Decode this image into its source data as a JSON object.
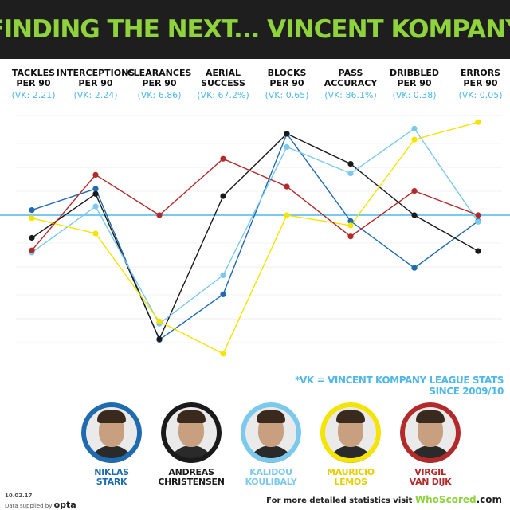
{
  "header": {
    "title": "FINDING THE NEXT... VINCENT KOMPANY"
  },
  "chart_data": {
    "type": "line",
    "categories": [
      {
        "line1": "TACKLES",
        "line2": "PER 90",
        "ref": "(VK: 2.21)"
      },
      {
        "line1": "INTERCEPTIONS",
        "line2": "PER 90",
        "ref": "(VK: 2.24)"
      },
      {
        "line1": "CLEARANCES",
        "line2": "PER 90",
        "ref": "(VK: 6.86)"
      },
      {
        "line1": "AERIAL",
        "line2": "SUCCESS",
        "ref": "(VK: 67.2%)"
      },
      {
        "line1": "BLOCKS",
        "line2": "PER 90",
        "ref": "(VK: 0.65)"
      },
      {
        "line1": "PASS",
        "line2": "ACCURACY",
        "ref": "(VK: 86.1%)"
      },
      {
        "line1": "DRIBBLED",
        "line2": "PER 90",
        "ref": "(VK: 0.38)"
      },
      {
        "line1": "ERRORS",
        "line2": "PER 90",
        "ref": "(VK: 0.05)"
      }
    ],
    "ylim": [
      -170,
      130
    ],
    "baseline": 0,
    "grid": true,
    "series": [
      {
        "name": "NIKLAS STARK",
        "color": "#1f6bb0",
        "values": [
          7,
          36,
          -170,
          -108,
          111,
          -8,
          -72,
          -8
        ]
      },
      {
        "name": "ANDREAS CHRISTENSEN",
        "color": "#1a1a1a",
        "values": [
          -31,
          29,
          -169,
          26,
          111,
          70,
          0,
          -49
        ]
      },
      {
        "name": "KALIDOU KOULIBALY",
        "color": "#7cc9ee",
        "values": [
          -51,
          12,
          -148,
          -82,
          93,
          57,
          118,
          -9
        ]
      },
      {
        "name": "MAURICIO LEMOS",
        "color": "#f5e300",
        "values": [
          -4,
          -25,
          -145,
          -189,
          0,
          -14,
          103,
          127
        ]
      },
      {
        "name": "VIRGIL VAN DIJK",
        "color": "#b22a2a",
        "values": [
          -48,
          55,
          0,
          77,
          39,
          -29,
          33,
          0
        ]
      }
    ]
  },
  "footnote": "*VK = VINCENT KOMPANY LEAGUE STATS SINCE 2009/10",
  "players": [
    {
      "first": "NIKLAS",
      "last": "STARK",
      "color": "#1f6bb0"
    },
    {
      "first": "ANDREAS",
      "last": "CHRISTENSEN",
      "color": "#1a1a1a"
    },
    {
      "first": "KALIDOU",
      "last": "KOULIBALY",
      "color": "#7cc9ee"
    },
    {
      "first": "MAURICIO",
      "last": "LEMOS",
      "color": "#f5e300"
    },
    {
      "first": "VIRGIL",
      "last": "VAN DIJK",
      "color": "#b22a2a"
    }
  ],
  "footer": {
    "date": "10.02.17",
    "data_supplied": "Data supplied by",
    "opta": "opta",
    "visit": "For more detailed statistics visit",
    "site_a": "WhoScored",
    "site_b": ".com"
  }
}
